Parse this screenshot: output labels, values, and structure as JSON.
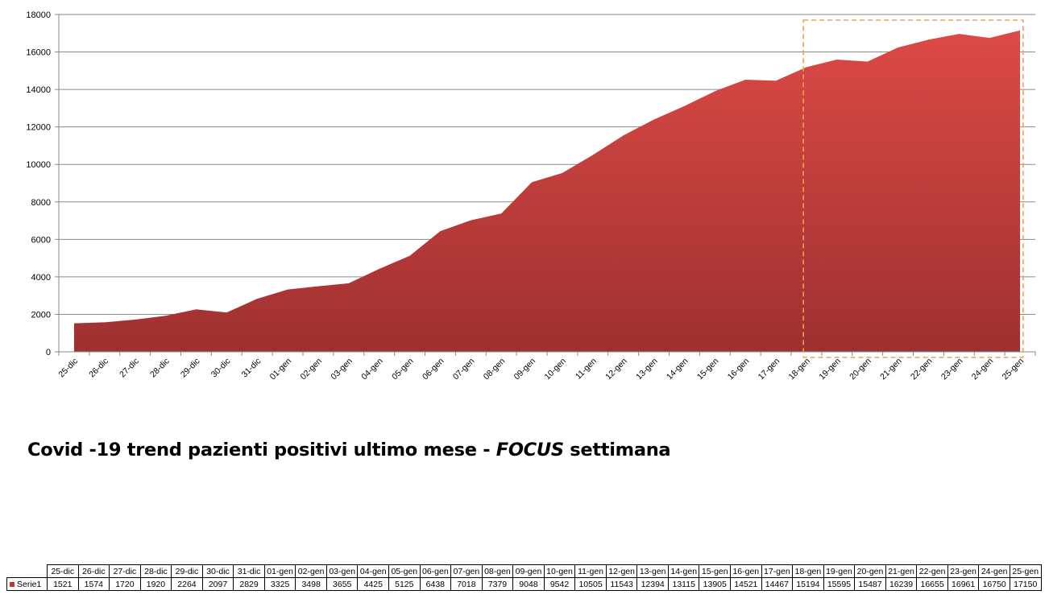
{
  "chart_data": {
    "type": "area",
    "title": "",
    "xlabel": "",
    "ylabel": "",
    "categories": [
      "25-dic",
      "26-dic",
      "27-dic",
      "28-dic",
      "29-dic",
      "30-dic",
      "31-dic",
      "01-gen",
      "02-gen",
      "03-gen",
      "04-gen",
      "05-gen",
      "06-gen",
      "07-gen",
      "08-gen",
      "09-gen",
      "10-gen",
      "11-gen",
      "12-gen",
      "13-gen",
      "14-gen",
      "15-gen",
      "16-gen",
      "17-gen",
      "18-gen",
      "19-gen",
      "20-gen",
      "21-gen",
      "22-gen",
      "23-gen",
      "24-gen",
      "25-gen"
    ],
    "series": [
      {
        "name": "Serie1",
        "values": [
          1521,
          1574,
          1720,
          1920,
          2264,
          2097,
          2829,
          3325,
          3498,
          3655,
          4425,
          5125,
          6438,
          7018,
          7379,
          9048,
          9542,
          10505,
          11543,
          12394,
          13115,
          13905,
          14521,
          14467,
          15194,
          15595,
          15487,
          16239,
          16655,
          16961,
          16750,
          17150
        ],
        "color_top": "#dc4a46",
        "color_bottom": "#9e3030"
      }
    ],
    "ylim": [
      0,
      18000
    ],
    "yticks": [
      0,
      2000,
      4000,
      6000,
      8000,
      10000,
      12000,
      14000,
      16000,
      18000
    ],
    "grid": true,
    "legend": "data-table",
    "highlight": {
      "from": "18-gen",
      "to": "25-gen",
      "color": "#f0a050",
      "style": "dashed"
    }
  },
  "caption": {
    "text_before": "Covid -19 trend pazienti positivi ultimo mese - ",
    "text_emphasis": "FOCUS",
    "text_after": " settimana"
  },
  "table": {
    "series_label": "Serie1",
    "legend_color": "#c0392b"
  }
}
